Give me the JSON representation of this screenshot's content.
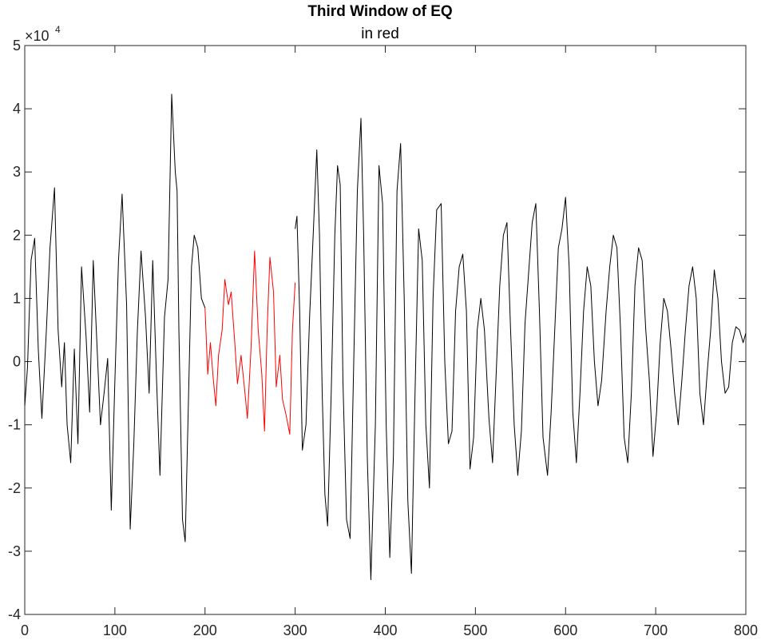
{
  "chart_data": {
    "type": "line",
    "title": "Third Window of EQ",
    "subtitle": "in red",
    "xlim": [
      0,
      800
    ],
    "ylim": [
      -40000,
      50000
    ],
    "x_ticks": [
      0,
      100,
      200,
      300,
      400,
      500,
      600,
      700,
      800
    ],
    "y_ticks": [
      -4,
      -3,
      -2,
      -1,
      0,
      1,
      2,
      3,
      4,
      5
    ],
    "y_exponent_base": "×10",
    "y_exponent_power": "4",
    "grid": false,
    "colors": {
      "main": "#000000",
      "window": "#ff0000",
      "axes": "#262626"
    },
    "series": [
      {
        "color": "#000000",
        "x": [
          0,
          3,
          7,
          11,
          15,
          19,
          24,
          28,
          33,
          37,
          41,
          44,
          47,
          51,
          55,
          59,
          63,
          68,
          72,
          76,
          80,
          84,
          88,
          92,
          96,
          100,
          104,
          108,
          113,
          117,
          121,
          125,
          129,
          134,
          138,
          142,
          146,
          150,
          155,
          159,
          163,
          167,
          169,
          171,
          175,
          178,
          181,
          185,
          188,
          192,
          196,
          200
        ],
        "y": [
          -7000,
          -1000,
          16000,
          19500,
          2000,
          -9000,
          5000,
          18000,
          27500,
          5000,
          -4000,
          3000,
          -10000,
          -16000,
          2000,
          -13000,
          15000,
          4000,
          -8000,
          16000,
          3000,
          -10000,
          -5000,
          500,
          -23500,
          -3000,
          16000,
          26500,
          9000,
          -26500,
          -13000,
          5000,
          17500,
          7000,
          -5000,
          16000,
          -2000,
          -18000,
          7000,
          13000,
          42300,
          30000,
          27000,
          5000,
          -25000,
          -28500,
          -10000,
          15000,
          20000,
          18000,
          10000,
          8500
        ]
      },
      {
        "color": "#ff0000",
        "x": [
          200,
          203,
          206,
          209,
          212,
          215,
          219,
          222,
          226,
          229,
          233,
          236,
          240,
          244,
          247,
          251,
          255,
          259,
          263,
          266,
          269,
          272,
          276,
          279,
          283,
          286,
          290,
          294,
          297,
          300
        ],
        "y": [
          8500,
          -2000,
          3000,
          -2500,
          -7000,
          1000,
          5000,
          13000,
          9000,
          11000,
          3000,
          -3500,
          1000,
          -4500,
          -9000,
          2000,
          17500,
          5000,
          -2000,
          -11000,
          5500,
          16500,
          11000,
          -4000,
          1000,
          -6000,
          -8500,
          -11500,
          5000,
          12500
        ]
      },
      {
        "color": "#000000",
        "x": [
          300,
          302,
          305,
          308,
          312,
          316,
          320,
          324,
          327,
          330,
          333,
          336,
          340,
          344,
          347,
          350,
          353,
          357,
          361,
          365,
          369,
          373,
          376,
          380,
          384,
          389,
          393,
          397,
          401,
          405,
          409,
          413,
          417,
          421,
          425,
          429,
          433,
          437,
          441,
          445,
          449,
          453,
          457,
          462,
          466,
          470,
          474,
          478,
          482,
          486,
          490,
          494,
          498,
          502,
          506,
          510,
          515,
          519,
          523,
          527,
          531,
          535,
          539,
          543,
          547,
          551,
          555,
          559,
          563,
          567,
          571,
          575,
          580,
          584,
          588,
          592,
          596,
          600,
          604,
          608,
          612,
          616,
          620,
          624,
          628,
          632,
          636,
          640,
          645,
          649,
          653,
          657,
          661,
          665,
          669,
          673,
          677,
          681,
          685,
          689,
          693,
          697,
          701,
          705,
          709,
          713,
          717,
          721,
          725,
          729,
          733,
          737,
          741,
          745,
          749,
          753,
          757,
          761,
          765,
          769,
          773,
          777,
          781,
          785,
          789,
          793,
          797,
          800
        ],
        "y": [
          21000,
          23000,
          8000,
          -14000,
          -10000,
          7000,
          20000,
          33500,
          20000,
          -5000,
          -21000,
          -26000,
          -5000,
          20000,
          31000,
          28000,
          -3000,
          -25000,
          -28000,
          0,
          27000,
          38500,
          20000,
          -15000,
          -34500,
          -10000,
          31000,
          25000,
          -10000,
          -31000,
          -15000,
          27000,
          34500,
          10000,
          -22000,
          -33500,
          -5000,
          21000,
          16000,
          -10000,
          -20000,
          10000,
          24000,
          25000,
          0,
          -13000,
          -11000,
          8000,
          15000,
          17000,
          8000,
          -17000,
          -12000,
          5000,
          10000,
          5000,
          -9000,
          -16000,
          -2000,
          12000,
          20000,
          22000,
          5000,
          -10000,
          -18000,
          -11000,
          6000,
          14000,
          22000,
          25000,
          8000,
          -12000,
          -18000,
          -8000,
          5000,
          18000,
          21000,
          26000,
          15000,
          -8000,
          -16000,
          -5000,
          8000,
          15000,
          12000,
          0,
          -7000,
          -3000,
          8000,
          15000,
          20000,
          18000,
          5000,
          -12000,
          -16000,
          -5000,
          12000,
          18000,
          16000,
          5000,
          -3000,
          -15000,
          -8000,
          3000,
          10000,
          8000,
          2000,
          -5000,
          -10000,
          -3000,
          5000,
          12000,
          15000,
          10000,
          -5000,
          -10000,
          -2000,
          5000,
          14500,
          10000,
          0,
          -5000,
          -4000,
          3000,
          5500,
          5000,
          3000,
          4500
        ]
      }
    ]
  }
}
